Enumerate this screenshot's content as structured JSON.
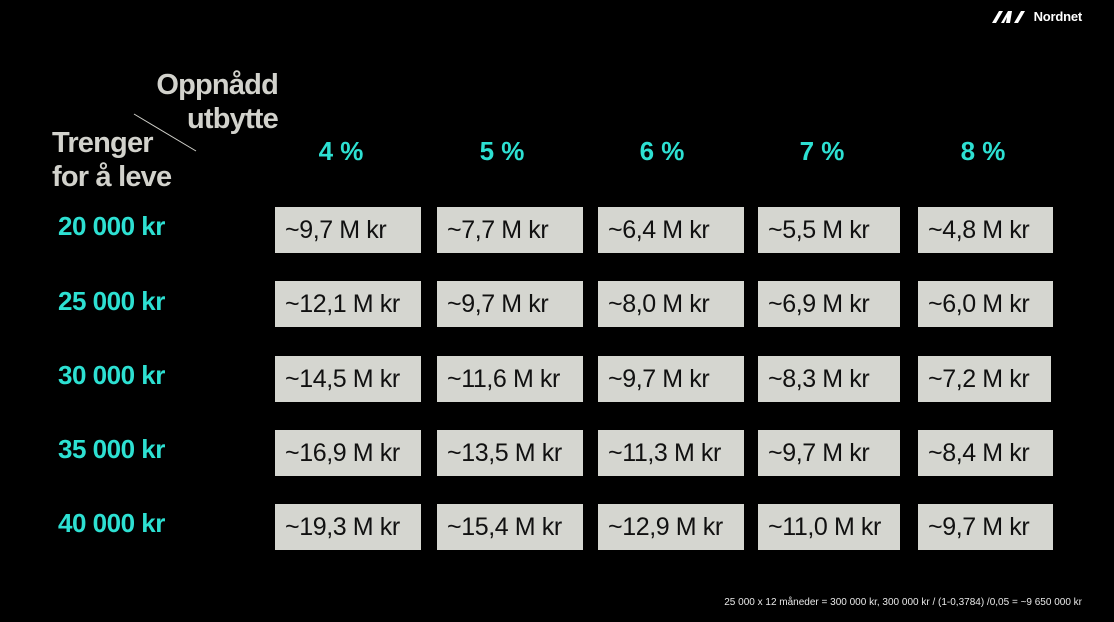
{
  "brand": {
    "name": "Nordnet",
    "logo_icon": "nordnet-logo-icon"
  },
  "corner": {
    "top_line1": "Oppnådd",
    "top_line2": "utbytte",
    "left_line1": "Trenger",
    "left_line2": "for å leve"
  },
  "columns": [
    "4 %",
    "5 %",
    "6 %",
    "7 %",
    "8 %"
  ],
  "rows": [
    {
      "label": "20 000 kr",
      "values": [
        "~9,7 M kr",
        "~7,7 M kr",
        "~6,4 M kr",
        "~5,5 M kr",
        "~4,8 M kr"
      ]
    },
    {
      "label": "25 000 kr",
      "values": [
        "~12,1 M kr",
        "~9,7 M kr",
        "~8,0 M kr",
        "~6,9 M kr",
        "~6,0 M kr"
      ]
    },
    {
      "label": "30 000 kr",
      "values": [
        "~14,5 M kr",
        "~11,6 M kr",
        "~9,7 M kr",
        "~8,3 M kr",
        "~7,2 M kr"
      ]
    },
    {
      "label": "35 000 kr",
      "values": [
        "~16,9 M kr",
        "~13,5 M kr",
        "~11,3 M kr",
        "~9,7 M kr",
        "~8,4 M kr"
      ]
    },
    {
      "label": "40 000 kr",
      "values": [
        "~19,3 M kr",
        "~15,4 M kr",
        "~12,9 M kr",
        "~11,0 M kr",
        "~9,7 M kr"
      ]
    }
  ],
  "footnote": "25 000 x 12 måneder = 300 000 kr, 300 000 kr / (1-0,3784) /0,05 = ~9 650 000 kr",
  "colors": {
    "accent": "#2de0d2",
    "cell_bg": "#d5d6d0",
    "background": "#000000"
  }
}
